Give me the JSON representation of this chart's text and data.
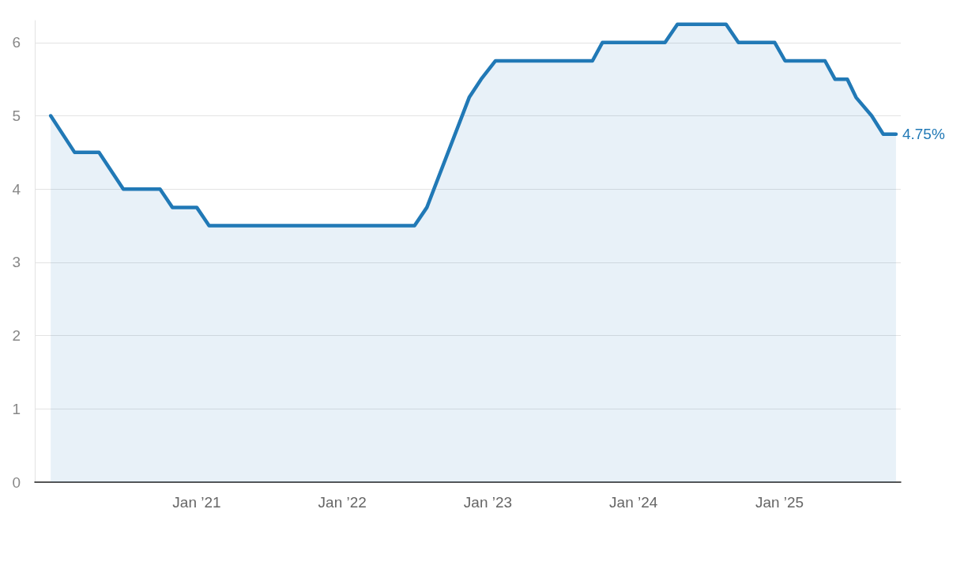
{
  "chart_data": {
    "type": "area",
    "x": [
      "2020-01-01",
      "2020-03-01",
      "2020-05-01",
      "2020-07-01",
      "2020-10-01",
      "2020-11-01",
      "2021-01-01",
      "2021-02-01",
      "2022-07-01",
      "2022-08-01",
      "2022-11-15",
      "2022-12-15",
      "2023-01-20",
      "2023-09-20",
      "2023-10-15",
      "2024-03-20",
      "2024-04-20",
      "2024-08-20",
      "2024-09-20",
      "2024-12-20",
      "2025-01-15",
      "2025-04-25",
      "2025-05-20",
      "2025-06-20",
      "2025-07-12",
      "2025-08-20",
      "2025-09-18",
      "2025-10-20"
    ],
    "series": [
      {
        "color": "#2179b6",
        "values": [
          5,
          4.5,
          4.5,
          4,
          4,
          3.75,
          3.75,
          3.5,
          3.5,
          3.75,
          5.25,
          5.5,
          5.75,
          5.75,
          6,
          6,
          6.25,
          6.25,
          6,
          6,
          5.75,
          5.75,
          5.5,
          5.5,
          5.25,
          5,
          4.75,
          4.75
        ],
        "value_labels": [
          null,
          null,
          null,
          null,
          null,
          null,
          null,
          null,
          null,
          null,
          null,
          null,
          null,
          null,
          null,
          null,
          null,
          null,
          null,
          null,
          null,
          null,
          null,
          null,
          null,
          null,
          null,
          "4.75%"
        ]
      }
    ],
    "xlim": [
      "2019-11-22",
      "2025-11-01"
    ],
    "xticks": [
      {
        "value": "2021-01-01",
        "label": "Jan ’21"
      },
      {
        "value": "2022-01-01",
        "label": "Jan ’22"
      },
      {
        "value": "2023-01-01",
        "label": "Jan ’23"
      },
      {
        "value": "2024-01-01",
        "label": "Jan ’24"
      },
      {
        "value": "2025-01-01",
        "label": "Jan ’25"
      }
    ],
    "ylim": [
      0,
      6.3
    ],
    "yticks": [
      0,
      1,
      2,
      3,
      4,
      5,
      6
    ],
    "grid": "y",
    "marker": "none",
    "line_style": "solid"
  }
}
